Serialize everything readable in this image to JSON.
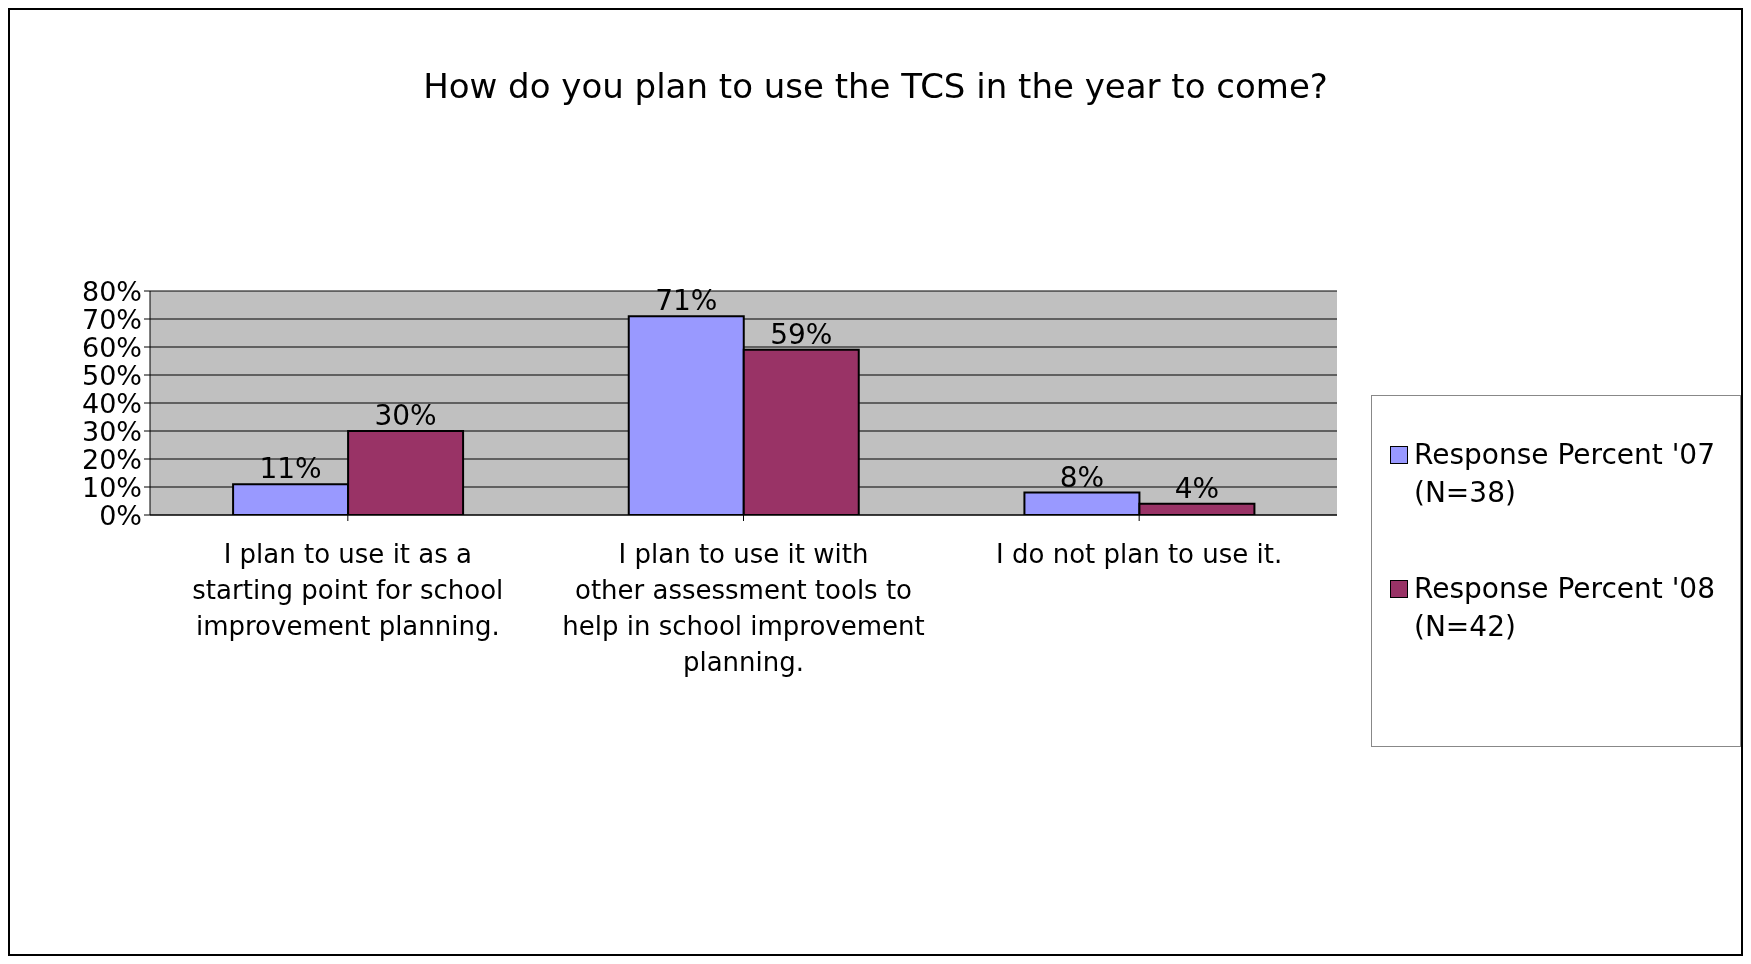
{
  "chart_data": {
    "type": "bar",
    "title": "How do you plan to use the TCS in the year to come?",
    "categories": [
      "I plan to use it as a starting point for school improvement planning.",
      "I plan to use it with other assessment tools to help in school improvement planning.",
      "I do not plan to use it."
    ],
    "series": [
      {
        "name": "Response Percent '07 (N=38)",
        "color": "#9999ff",
        "values": [
          11,
          71,
          8
        ],
        "value_labels": [
          "11%",
          "71%",
          "8%"
        ]
      },
      {
        "name": "Response Percent '08 (N=42)",
        "color": "#993366",
        "values": [
          30,
          59,
          4
        ],
        "value_labels": [
          "30%",
          "59%",
          "4%"
        ]
      }
    ],
    "ylim": [
      0,
      80
    ],
    "yticks": [
      {
        "value": 0,
        "label": "0%"
      },
      {
        "value": 10,
        "label": "10%"
      },
      {
        "value": 20,
        "label": "20%"
      },
      {
        "value": 30,
        "label": "30%"
      },
      {
        "value": 40,
        "label": "40%"
      },
      {
        "value": 50,
        "label": "50%"
      },
      {
        "value": 60,
        "label": "60%"
      },
      {
        "value": 70,
        "label": "70%"
      },
      {
        "value": 80,
        "label": "80%"
      }
    ],
    "grid": "y",
    "legend": "right"
  }
}
